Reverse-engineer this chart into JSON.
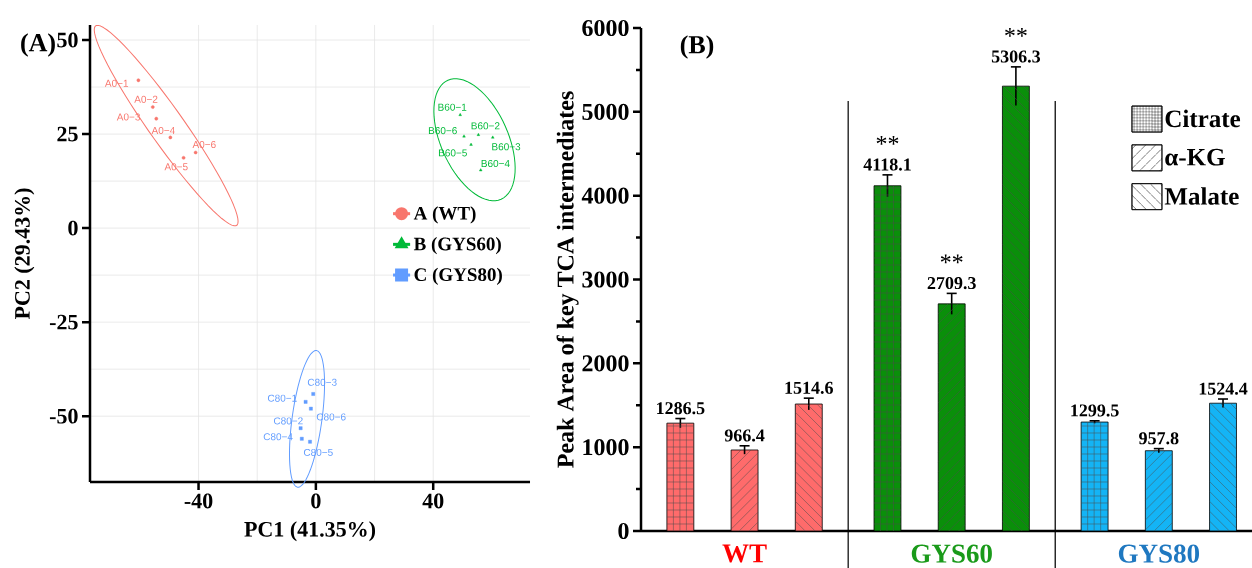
{
  "chart_data": [
    {
      "type": "scatter",
      "xlabel": "PC1 (41.35%)",
      "ylabel": "PC2 (29.43%)",
      "xlim": [
        -77,
        73
      ],
      "ylim": [
        -67.5,
        54
      ],
      "xticks": [
        -40,
        0,
        40
      ],
      "yticks": [
        -50,
        -25,
        0,
        25,
        50
      ],
      "grid": true,
      "legend": "right",
      "series": [
        {
          "name": "A (WT)",
          "type": "scatter",
          "color": "#f8766d",
          "marker": "circle",
          "x": [
            -60.5,
            -55.6,
            -54.4,
            -49.6,
            -45.1,
            -41.0
          ],
          "values": [
            39.3,
            32.2,
            29.1,
            24.1,
            18.7,
            20.1
          ]
        },
        {
          "name": "B (GYS60)",
          "type": "scatter",
          "color": "#00ba38",
          "marker": "triangle",
          "x": [
            49.2,
            50.5,
            55.4,
            60.3,
            52.9,
            56.2
          ],
          "values": [
            30.1,
            24.4,
            24.8,
            24.1,
            22.2,
            15.4
          ]
        },
        {
          "name": "C (GYS80)",
          "type": "scatter",
          "color": "#619cff",
          "marker": "square",
          "x": [
            -0.9,
            -3.5,
            -1.7,
            -5.2,
            -4.8,
            -2.0
          ],
          "values": [
            -44.1,
            -46.2,
            -48.0,
            -53.2,
            -56.0,
            -56.8
          ]
        }
      ],
      "annotations": [
        "(A)",
        {
          "text": "A0−1",
          "x": -60.5,
          "y": 39.3
        },
        {
          "text": "A0−2",
          "x": -55.6,
          "y": 32.2
        },
        {
          "text": "A0−3",
          "x": -54.4,
          "y": 29.1
        },
        {
          "text": "A0−4",
          "x": -49.6,
          "y": 24.1
        },
        {
          "text": "A0−5",
          "x": -45.1,
          "y": 18.7
        },
        {
          "text": "A0−6",
          "x": -41.0,
          "y": 20.1
        },
        {
          "text": "B60−1",
          "x": 49.2,
          "y": 30.1
        },
        {
          "text": "B60−6",
          "x": 50.5,
          "y": 24.4
        },
        {
          "text": "B60−2",
          "x": 55.4,
          "y": 24.8
        },
        {
          "text": "B60−3",
          "x": 60.3,
          "y": 24.1
        },
        {
          "text": "B60−5",
          "x": 52.9,
          "y": 22.2
        },
        {
          "text": "B60−4",
          "x": 56.2,
          "y": 15.4
        },
        {
          "text": "C80−3",
          "x": -0.9,
          "y": -44.1
        },
        {
          "text": "C80−1",
          "x": -3.5,
          "y": -46.2
        },
        {
          "text": "C80−6",
          "x": -1.7,
          "y": -48.0
        },
        {
          "text": "C80−2",
          "x": -5.2,
          "y": -53.2
        },
        {
          "text": "C80−4",
          "x": -4.8,
          "y": -56.0
        },
        {
          "text": "C80−5",
          "x": -2.0,
          "y": -56.8
        }
      ]
    },
    {
      "type": "bar",
      "categories": [
        "WT",
        "GYS60",
        "GYS80"
      ],
      "ylabel": "Peak Area of key TCA intermediates",
      "ylim": [
        0,
        6000
      ],
      "yticks": [
        0,
        1000,
        2000,
        3000,
        4000,
        5000,
        6000
      ],
      "data_labels": true,
      "legend": "top right",
      "series": [
        {
          "name": "Citrate",
          "colors": [
            "#ff6b6b",
            "#0a8f0a",
            "#14b4f5"
          ],
          "values": [
            1286.5,
            4118.1,
            1299.5
          ],
          "errors": [
            55,
            130,
            15
          ]
        },
        {
          "name": "α-KG",
          "colors": [
            "#ff6b6b",
            "#0a8f0a",
            "#14b4f5"
          ],
          "values": [
            966.4,
            2709.3,
            957.8
          ],
          "errors": [
            50,
            125,
            25
          ]
        },
        {
          "name": "Malate",
          "colors": [
            "#ff6b6b",
            "#0a8f0a",
            "#14b4f5"
          ],
          "values": [
            1514.6,
            5306.3,
            1524.4
          ],
          "errors": [
            70,
            230,
            50
          ]
        }
      ],
      "annotations": [
        "(B)",
        "**",
        "**",
        "**"
      ]
    }
  ]
}
